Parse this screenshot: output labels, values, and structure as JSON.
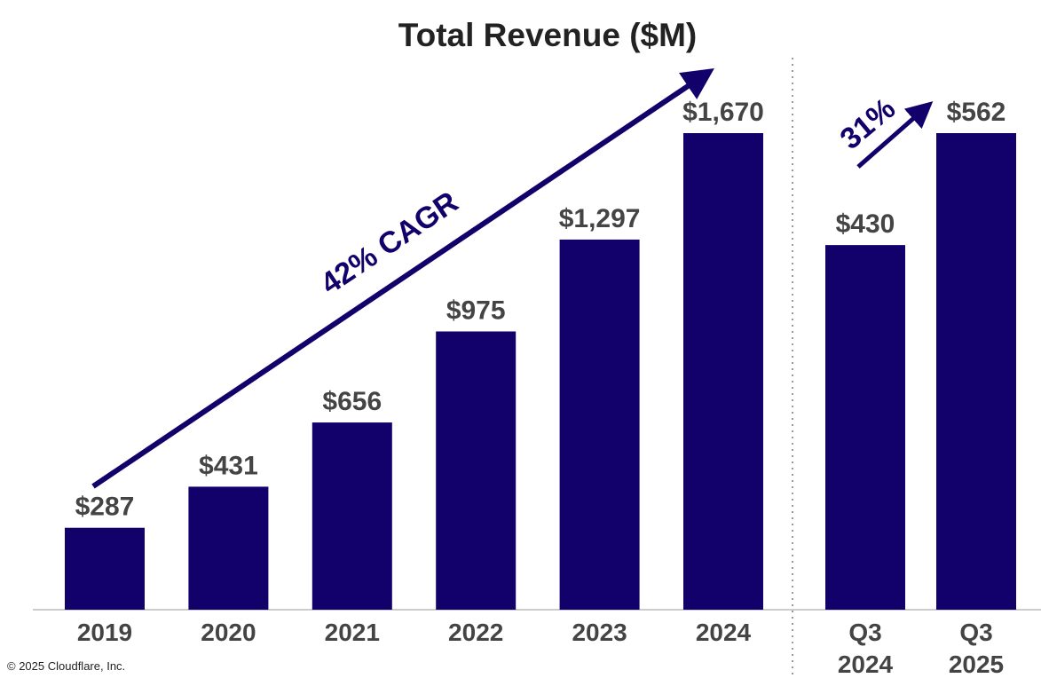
{
  "chart_data": {
    "type": "bar",
    "title": "Total Revenue ($M)",
    "xlabel": "",
    "ylabel": "",
    "groups": [
      {
        "name": "annual",
        "categories": [
          "2019",
          "2020",
          "2021",
          "2022",
          "2023",
          "2024"
        ],
        "values": [
          287,
          431,
          656,
          975,
          1297,
          1670
        ],
        "labels": [
          "$287",
          "$431",
          "$656",
          "$975",
          "$1,297",
          "$1,670"
        ],
        "annotation": "42% CAGR"
      },
      {
        "name": "quarterly",
        "categories": [
          [
            "Q3",
            "2024"
          ],
          [
            "Q3",
            "2025"
          ]
        ],
        "values": [
          430,
          562
        ],
        "labels": [
          "$430",
          "$562"
        ],
        "annotation": "31%"
      }
    ],
    "grid": false,
    "bar_color": "#12006b",
    "label_color": "#444444"
  },
  "footer": "© 2025 Cloudflare, Inc."
}
